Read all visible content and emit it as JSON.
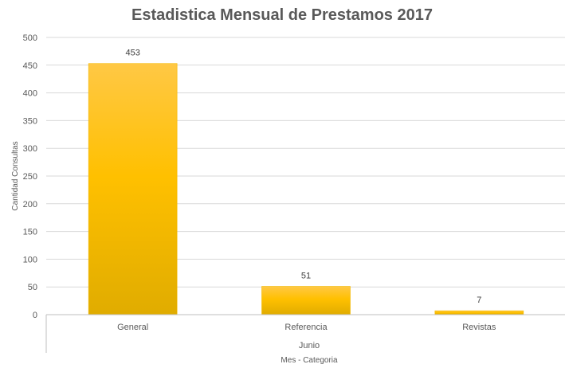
{
  "chart_data": {
    "type": "bar",
    "title": "Estadistica Mensual de Prestamos 2017",
    "categories": [
      "General",
      "Referencia",
      "Revistas"
    ],
    "group_label": "Junio",
    "values": [
      453,
      51,
      7
    ],
    "xlabel": "Mes - Categoria",
    "ylabel": "Cantidad Consultas",
    "ylim": [
      0,
      500
    ],
    "yticks": [
      0,
      50,
      100,
      150,
      200,
      250,
      300,
      350,
      400,
      450,
      500
    ],
    "grid": true,
    "legend": "none",
    "colors": {
      "bar_top": "#FFC845",
      "bar_mid": "#FFC000",
      "bar_bottom": "#E0AC00",
      "gridline": "#D9D9D9",
      "axis": "#BFBFBF"
    }
  }
}
